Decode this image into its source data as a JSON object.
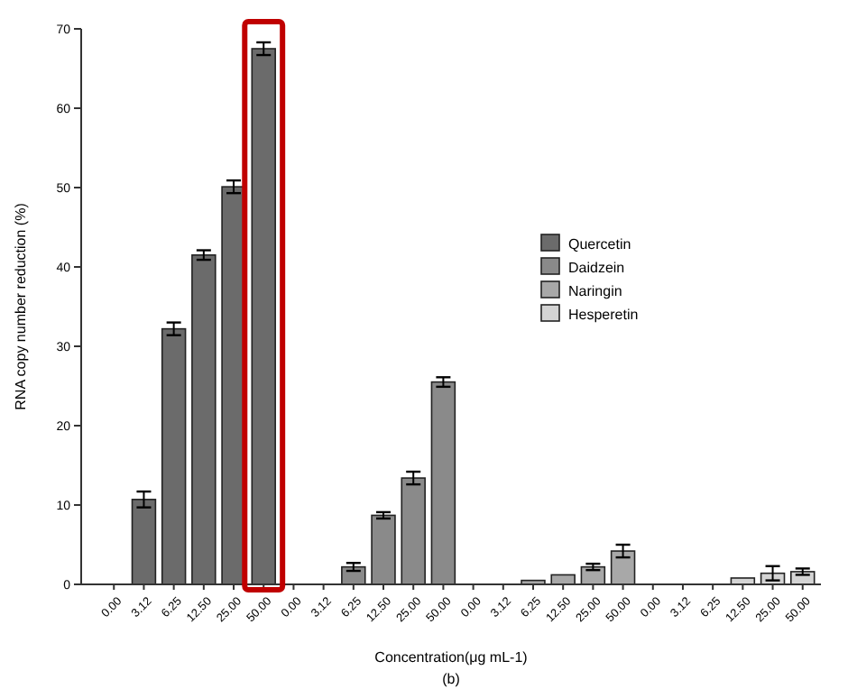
{
  "chart_data": {
    "type": "bar",
    "xlabel": "Concentration(μg mL-1)",
    "ylabel": "RNA copy number reduction (%)",
    "annotations": [
      "(b)"
    ],
    "categories": [
      "0.00",
      "3.12",
      "6.25",
      "12.50",
      "25.00",
      "50.00",
      "0.00",
      "3.12",
      "6.25",
      "12.50",
      "25.00",
      "50.00",
      "0.00",
      "3.12",
      "6.25",
      "12.50",
      "25.00",
      "50.00",
      "0.00",
      "3.12",
      "6.25",
      "12.50",
      "25.00",
      "50.00"
    ],
    "series": [
      {
        "name": "Quercetin",
        "color": "#6b6b6b",
        "values": [
          0,
          10.7,
          32.2,
          41.5,
          50.1,
          67.5,
          null,
          null,
          null,
          null,
          null,
          null,
          null,
          null,
          null,
          null,
          null,
          null,
          null,
          null,
          null,
          null,
          null,
          null
        ],
        "errors": [
          null,
          1,
          0.8,
          0.6,
          0.8,
          0.8,
          null,
          null,
          null,
          null,
          null,
          null,
          null,
          null,
          null,
          null,
          null,
          null,
          null,
          null,
          null,
          null,
          null,
          null
        ]
      },
      {
        "name": "Daidzein",
        "color": "#8a8a8a",
        "values": [
          null,
          null,
          null,
          null,
          null,
          null,
          0,
          0,
          2.2,
          8.7,
          13.4,
          25.5,
          null,
          null,
          null,
          null,
          null,
          null,
          null,
          null,
          null,
          null,
          null,
          null
        ],
        "errors": [
          null,
          null,
          null,
          null,
          null,
          null,
          null,
          null,
          0.5,
          0.4,
          0.8,
          0.6,
          null,
          null,
          null,
          null,
          null,
          null,
          null,
          null,
          null,
          null,
          null,
          null
        ]
      },
      {
        "name": "Naringin",
        "color": "#a8a8a8",
        "values": [
          null,
          null,
          null,
          null,
          null,
          null,
          null,
          null,
          null,
          null,
          null,
          null,
          0,
          0,
          0.5,
          1.2,
          2.2,
          4.2,
          null,
          null,
          null,
          null,
          null,
          null
        ],
        "errors": [
          null,
          null,
          null,
          null,
          null,
          null,
          null,
          null,
          null,
          null,
          null,
          null,
          null,
          null,
          null,
          null,
          0.4,
          0.8,
          null,
          null,
          null,
          null,
          null,
          null
        ]
      },
      {
        "name": "Hesperetin",
        "color": "#d4d4d4",
        "values": [
          null,
          null,
          null,
          null,
          null,
          null,
          null,
          null,
          null,
          null,
          null,
          null,
          null,
          null,
          null,
          null,
          null,
          null,
          0,
          0,
          0,
          0.8,
          1.4,
          1.6
        ],
        "errors": [
          null,
          null,
          null,
          null,
          null,
          null,
          null,
          null,
          null,
          null,
          null,
          null,
          null,
          null,
          null,
          null,
          null,
          null,
          null,
          null,
          null,
          null,
          0.9,
          0.4
        ]
      }
    ],
    "ylim": [
      0,
      70
    ],
    "yticks": [
      0,
      10,
      20,
      30,
      40,
      50,
      60,
      70
    ],
    "grid": false,
    "legend": "right"
  }
}
